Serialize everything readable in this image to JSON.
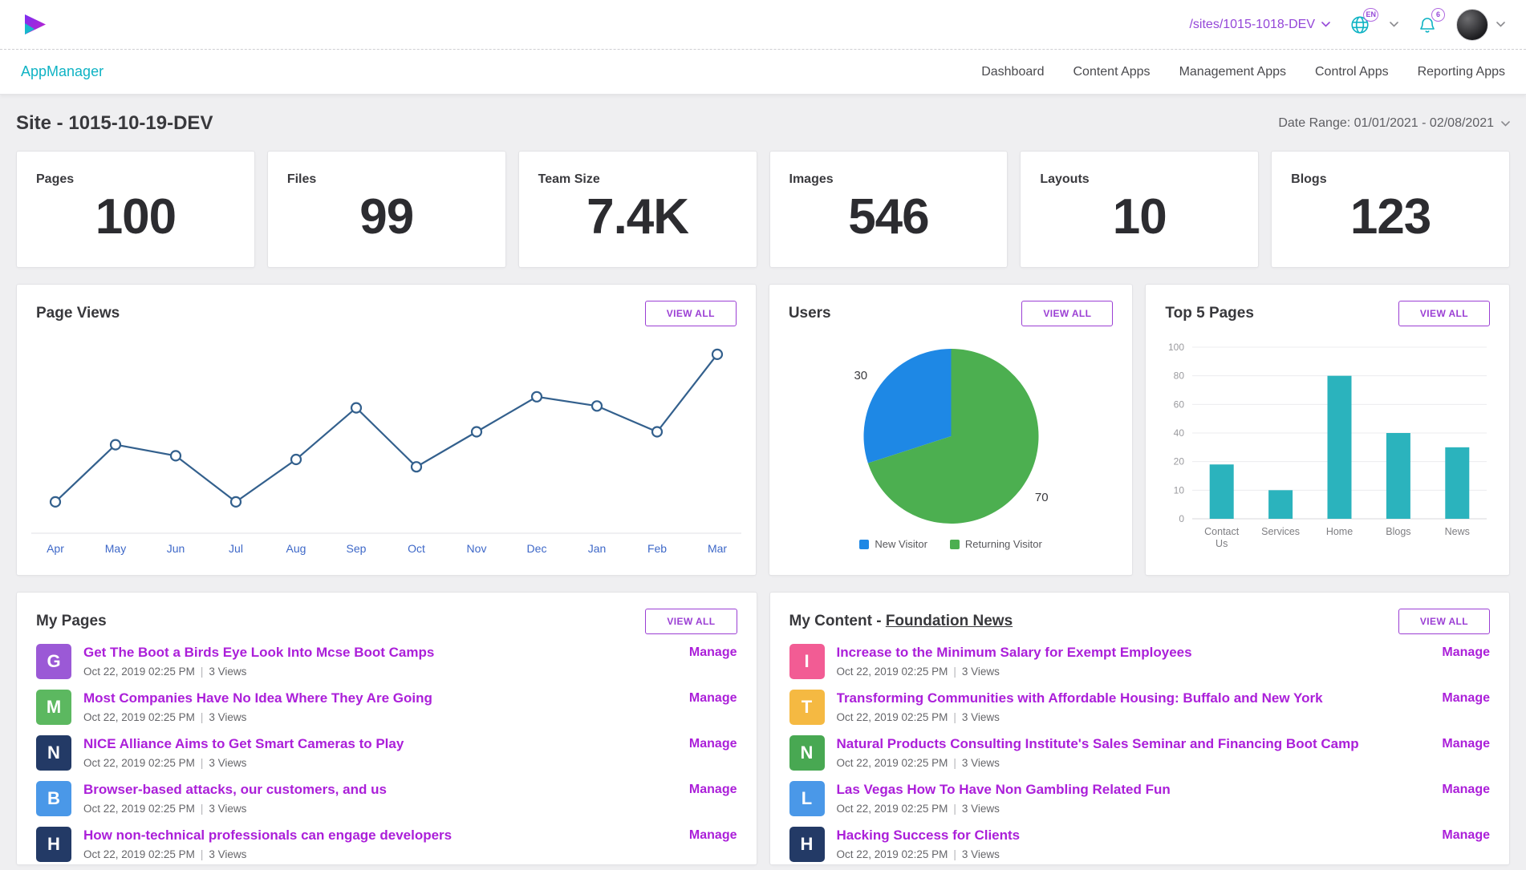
{
  "labels": {
    "view_all": "VIEW ALL",
    "manage": "Manage",
    "meta_separator": "|"
  },
  "topbar": {
    "site_path": "/sites/1015-1018-DEV",
    "lang_badge": "EN",
    "notification_count": "6"
  },
  "navbar": {
    "brand": "AppManager",
    "links": [
      "Dashboard",
      "Content Apps",
      "Management Apps",
      "Control Apps",
      "Reporting Apps"
    ]
  },
  "page": {
    "title": "Site - 1015-10-19-DEV",
    "date_range": "Date Range: 01/01/2021 - 02/08/2021"
  },
  "stats": [
    {
      "label": "Pages",
      "value": "100"
    },
    {
      "label": "Files",
      "value": "99"
    },
    {
      "label": "Team Size",
      "value": "7.4K"
    },
    {
      "label": "Images",
      "value": "546"
    },
    {
      "label": "Layouts",
      "value": "10"
    },
    {
      "label": "Blogs",
      "value": "123"
    }
  ],
  "panels": {
    "page_views": {
      "title": "Page Views"
    },
    "users": {
      "title": "Users"
    },
    "top_pages": {
      "title": "Top 5 Pages"
    },
    "my_pages": {
      "title": "My Pages"
    },
    "my_content": {
      "title_prefix": "My Content - ",
      "title_link": "Foundation News"
    }
  },
  "chart_data": [
    {
      "name": "page_views",
      "type": "line",
      "x": [
        "Apr",
        "May",
        "Jun",
        "Jul",
        "Aug",
        "Sep",
        "Oct",
        "Nov",
        "Dec",
        "Jan",
        "Feb",
        "Mar"
      ],
      "values": [
        17,
        48,
        42,
        17,
        40,
        68,
        36,
        55,
        74,
        69,
        55,
        97
      ],
      "ylim": [
        0,
        100
      ],
      "grid": false,
      "legend": "none",
      "line_color": "#33608d",
      "point_fill": "#ffffff",
      "x_label_color": "#3e68c8"
    },
    {
      "name": "users",
      "type": "pie",
      "start_angle_deg": 252,
      "slices": [
        {
          "label": "New Visitor",
          "value": 30,
          "color": "#1e88e5"
        },
        {
          "label": "Returning Visitor",
          "value": 70,
          "color": "#4caf50"
        }
      ],
      "legend": "bottom"
    },
    {
      "name": "top_5_pages",
      "type": "bar",
      "categories": [
        "Contact Us",
        "Services",
        "Home",
        "Blogs",
        "News"
      ],
      "values": [
        19,
        10,
        80,
        40,
        30
      ],
      "yticks": [
        0,
        10,
        20,
        40,
        60,
        80,
        100
      ],
      "bar_color": "#2bb3bd",
      "grid": true,
      "legend": "none"
    }
  ],
  "my_pages": {
    "items": [
      {
        "letter": "G",
        "color": "#9b59d6",
        "title": "Get The Boot a Birds Eye Look Into Mcse Boot Camps",
        "date": "Oct 22, 2019 02:25 PM",
        "views": "3 Views"
      },
      {
        "letter": "M",
        "color": "#5cb860",
        "title": "Most Companies Have No Idea Where They Are Going",
        "date": "Oct 22, 2019 02:25 PM",
        "views": "3 Views"
      },
      {
        "letter": "N",
        "color": "#233a66",
        "title": "NICE Alliance Aims to Get Smart Cameras to Play",
        "date": "Oct 22, 2019 02:25 PM",
        "views": "3 Views"
      },
      {
        "letter": "B",
        "color": "#4a98e8",
        "title": "Browser-based attacks, our customers, and us",
        "date": "Oct 22, 2019 02:25 PM",
        "views": "3 Views"
      },
      {
        "letter": "H",
        "color": "#233a66",
        "title": "How non-technical professionals can engage developers",
        "date": "Oct 22, 2019 02:25 PM",
        "views": "3 Views"
      }
    ]
  },
  "my_content": {
    "items": [
      {
        "letter": "I",
        "color": "#f25c94",
        "title": "Increase to the Minimum Salary for Exempt Employees",
        "date": "Oct 22, 2019 02:25 PM",
        "views": "3 Views"
      },
      {
        "letter": "T",
        "color": "#f5b942",
        "title": "Transforming Communities with Affordable Housing: Buffalo and New York",
        "date": "Oct 22, 2019 02:25 PM",
        "views": "3 Views"
      },
      {
        "letter": "N",
        "color": "#48a852",
        "title": "Natural Products Consulting Institute's Sales Seminar and Financing Boot Camp",
        "date": "Oct 22, 2019 02:25 PM",
        "views": "3 Views"
      },
      {
        "letter": "L",
        "color": "#4a98e8",
        "title": "Las Vegas How To Have Non Gambling Related Fun",
        "date": "Oct 22, 2019 02:25 PM",
        "views": "3 Views"
      },
      {
        "letter": "H",
        "color": "#233a66",
        "title": "Hacking Success for Clients",
        "date": "Oct 22, 2019 02:25 PM",
        "views": "3 Views"
      }
    ]
  },
  "colors": {
    "accent_teal": "#0fb3c4",
    "accent_purple": "#9b3fd4",
    "link_purple": "#ab1fd9"
  }
}
